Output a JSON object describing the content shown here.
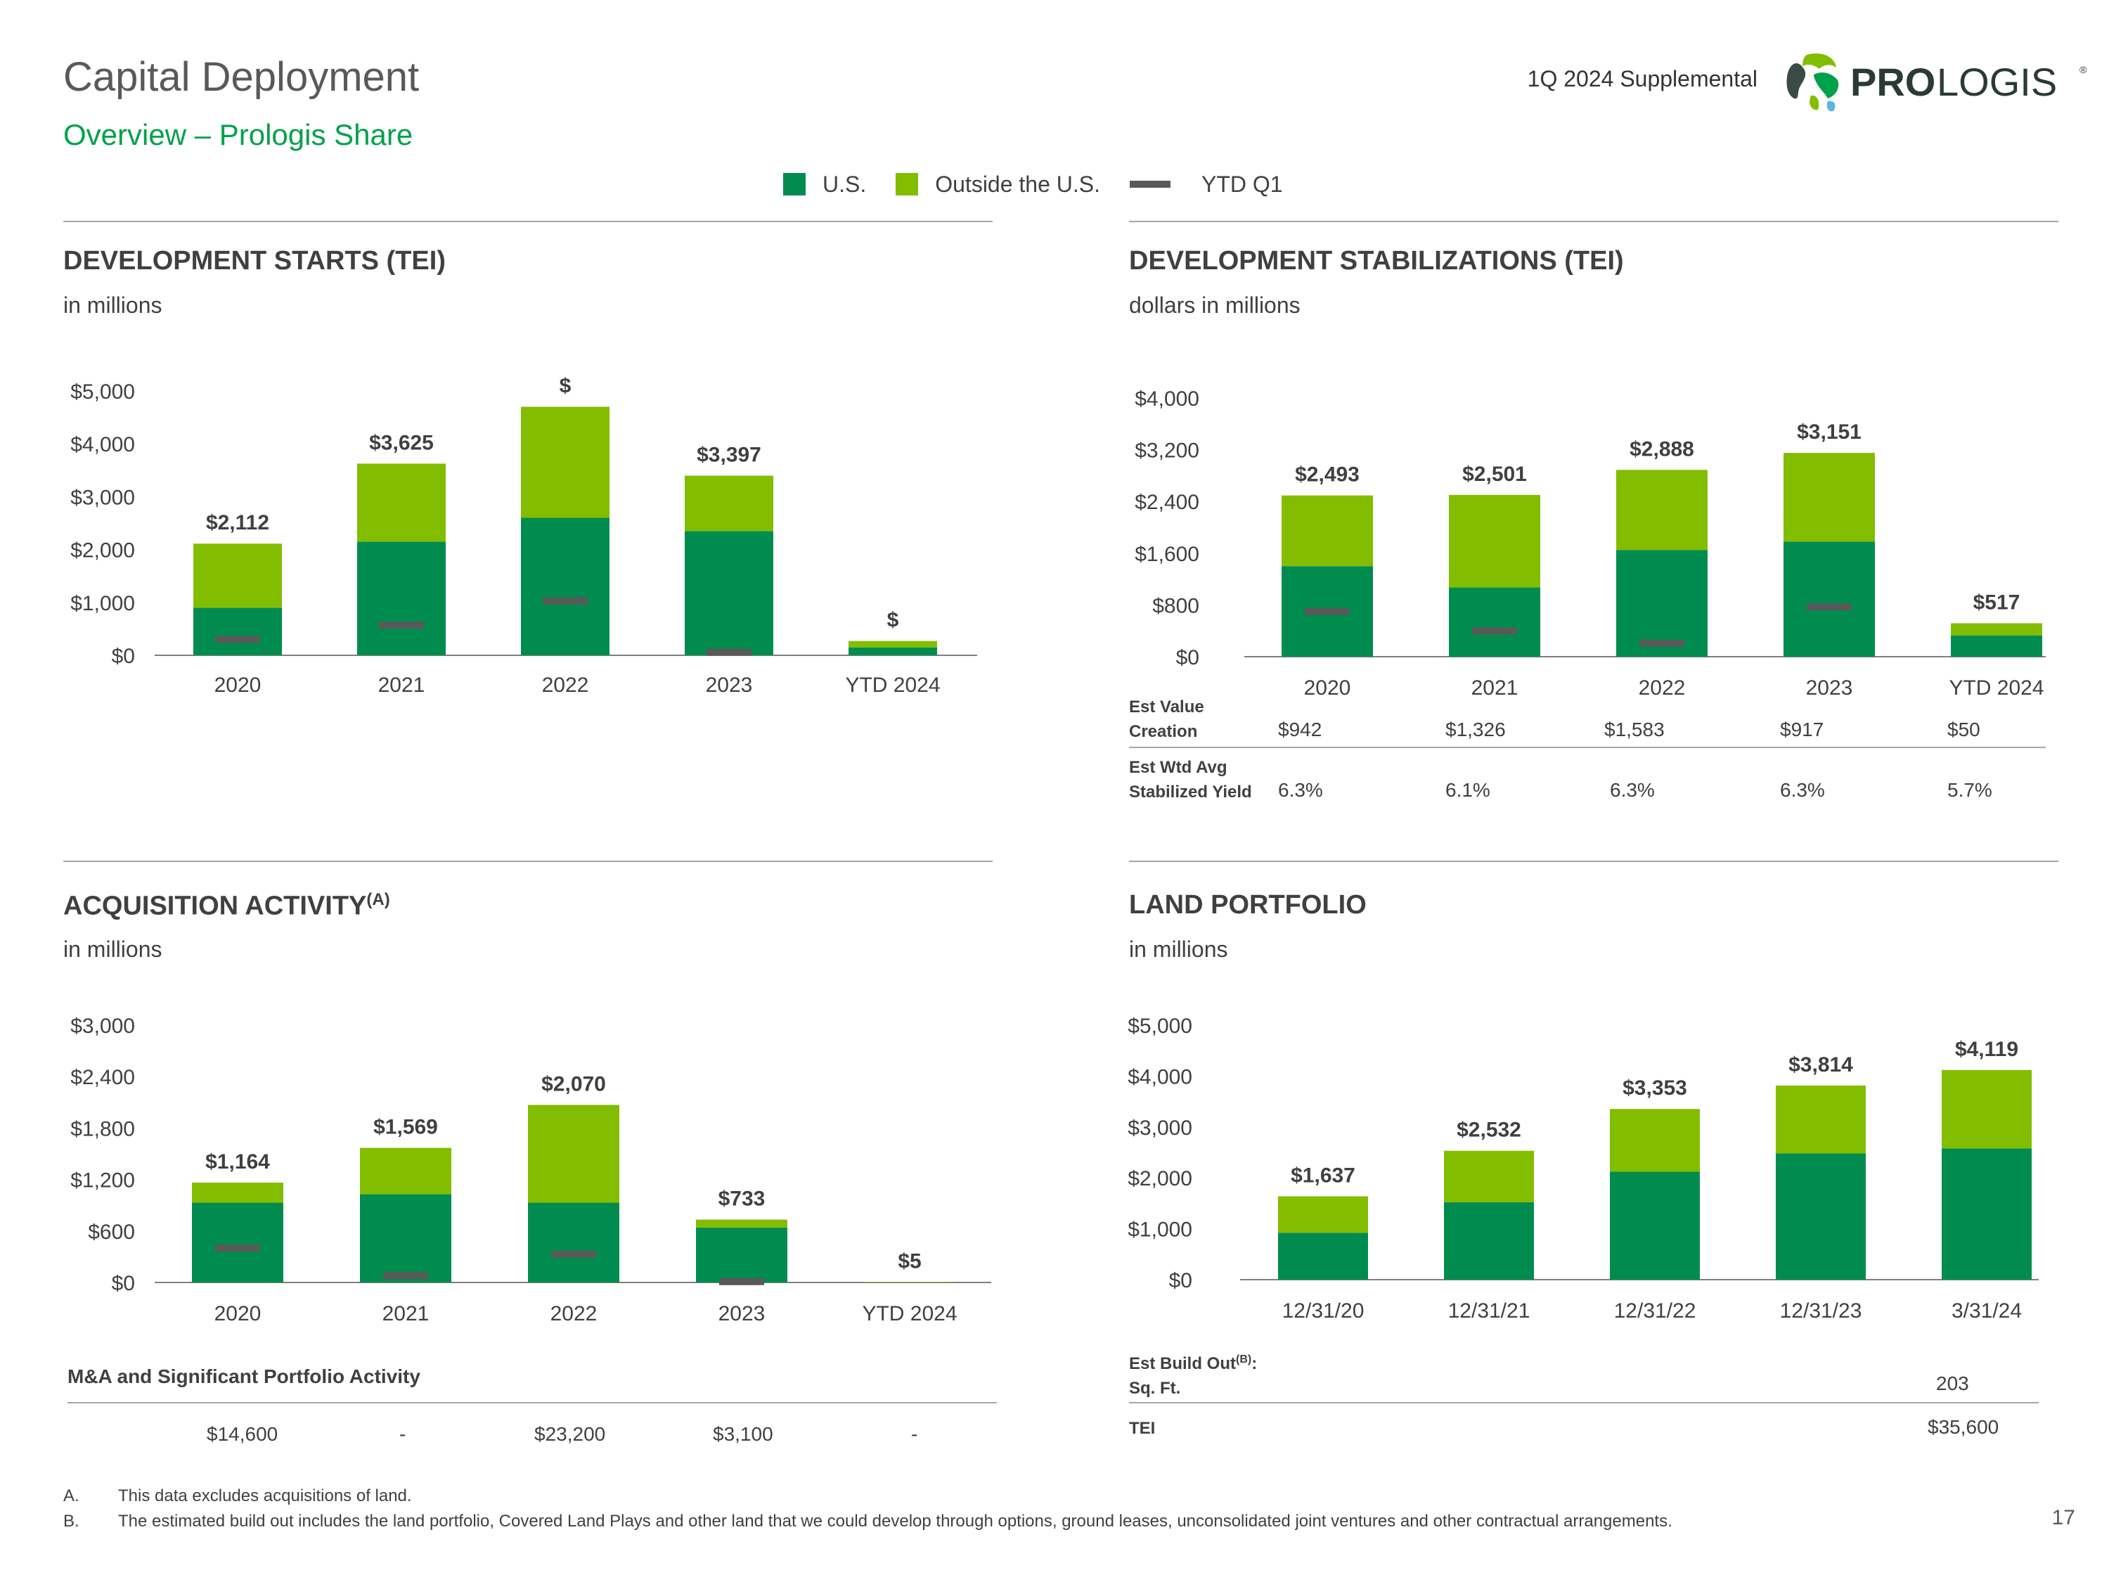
{
  "header": {
    "title": "Capital Deployment",
    "subtitle": "Overview – Prologis Share",
    "supplemental": "1Q 2024 Supplemental",
    "logo_text": "PROLOGIS",
    "logo_text_bold": "PRO",
    "logo_text_light": "LOGIS",
    "registered_mark": "®"
  },
  "legend": {
    "items": [
      {
        "label": "U.S.",
        "color": "#008C4F",
        "kind": "swatch"
      },
      {
        "label": "Outside the U.S.",
        "color": "#83BD00",
        "kind": "swatch"
      },
      {
        "label": "YTD Q1",
        "color": "#595959",
        "kind": "dash"
      }
    ]
  },
  "colors": {
    "us": "#008C4F",
    "outside": "#83BD00",
    "ytd": "#595959",
    "axis": "#7f7f7f",
    "text": "#404040"
  },
  "sections": {
    "starts": {
      "title": "DEVELOPMENT STARTS (TEI)",
      "subtitle": "in millions"
    },
    "stabilizations": {
      "title": "DEVELOPMENT STABILIZATIONS (TEI)",
      "subtitle": "dollars in millions"
    },
    "acquisition": {
      "title": "ACQUISITION ACTIVITY",
      "title_sup": "(A)",
      "subtitle": "in millions"
    },
    "land": {
      "title": "LAND PORTFOLIO",
      "subtitle": "in millions"
    }
  },
  "chart_data": [
    {
      "id": "starts",
      "type": "bar",
      "stacked": true,
      "categories": [
        "2020",
        "2021",
        "2022",
        "2023",
        "YTD 2024"
      ],
      "series": [
        {
          "name": "U.S.",
          "values": [
            900,
            2150,
            2600,
            2350,
            150
          ]
        },
        {
          "name": "Outside the U.S.",
          "values": [
            1212,
            1475,
            2100,
            1047,
            120
          ]
        }
      ],
      "ytd_q1": [
        300,
        570,
        1030,
        60,
        null
      ],
      "data_labels": [
        "$2,112",
        "$3,625",
        "$",
        "$3,397",
        "$"
      ],
      "yticks": [
        "$0",
        "$1,000",
        "$2,000",
        "$3,000",
        "$4,000",
        "$5,000"
      ],
      "ylim": [
        0,
        5000
      ],
      "grid": false
    },
    {
      "id": "stabilizations",
      "type": "bar",
      "stacked": true,
      "categories": [
        "2020",
        "2021",
        "2022",
        "2023",
        "YTD 2024"
      ],
      "series": [
        {
          "name": "U.S.",
          "values": [
            1400,
            1070,
            1650,
            1780,
            330
          ]
        },
        {
          "name": "Outside the U.S.",
          "values": [
            1093,
            1431,
            1238,
            1371,
            187
          ]
        }
      ],
      "ytd_q1": [
        700,
        400,
        210,
        770,
        null
      ],
      "data_labels": [
        "$2,493",
        "$2,501",
        "$2,888",
        "$3,151",
        "$517"
      ],
      "yticks": [
        "$0",
        "$800",
        "$1,600",
        "$2,400",
        "$3,200",
        "$4,000"
      ],
      "ylim": [
        0,
        4000
      ],
      "grid": false,
      "table": {
        "rows": [
          {
            "label_lines": [
              "Est Value",
              "Creation"
            ],
            "values": [
              "$942",
              "$1,326",
              "$1,583",
              "$917",
              "$50"
            ]
          },
          {
            "label_lines": [
              "Est Wtd Avg",
              "Stabilized Yield"
            ],
            "values": [
              "6.3%",
              "6.1%",
              "6.3%",
              "6.3%",
              "5.7%"
            ]
          }
        ]
      }
    },
    {
      "id": "acquisition",
      "type": "bar",
      "stacked": true,
      "categories": [
        "2020",
        "2021",
        "2022",
        "2023",
        "YTD 2024"
      ],
      "series": [
        {
          "name": "U.S.",
          "values": [
            930,
            1030,
            930,
            640,
            0
          ]
        },
        {
          "name": "Outside the U.S.",
          "values": [
            234,
            539,
            1140,
            93,
            5
          ]
        }
      ],
      "ytd_q1": [
        400,
        80,
        330,
        10,
        null
      ],
      "data_labels": [
        "$1,164",
        "$1,569",
        "$2,070",
        "$733",
        "$5"
      ],
      "yticks": [
        "$0",
        "$600",
        "$1,200",
        "$1,800",
        "$2,400",
        "$3,000"
      ],
      "ylim": [
        0,
        3000
      ],
      "grid": false,
      "table": {
        "title": "M&A and Significant Portfolio Activity",
        "values": [
          "$14,600",
          "-",
          "$23,200",
          "$3,100",
          "-"
        ]
      }
    },
    {
      "id": "land",
      "type": "bar",
      "stacked": true,
      "categories": [
        "12/31/20",
        "12/31/21",
        "12/31/22",
        "12/31/23",
        "3/31/24"
      ],
      "series": [
        {
          "name": "U.S.",
          "values": [
            920,
            1520,
            2120,
            2480,
            2580
          ]
        },
        {
          "name": "Outside the U.S.",
          "values": [
            717,
            1012,
            1233,
            1334,
            1539
          ]
        }
      ],
      "data_labels": [
        "$1,637",
        "$2,532",
        "$3,353",
        "$3,814",
        "$4,119"
      ],
      "yticks": [
        "$0",
        "$1,000",
        "$2,000",
        "$3,000",
        "$4,000",
        "$5,000"
      ],
      "ylim": [
        0,
        5000
      ],
      "grid": false,
      "table": {
        "build_out_label": "Est Build Out",
        "build_out_sup": "(B)",
        "build_out_colon": ":",
        "sqft_label": "Sq. Ft.",
        "sqft_value": "203",
        "tei_label": "TEI",
        "tei_value": "$35,600"
      }
    }
  ],
  "footnotes": [
    {
      "letter": "A.",
      "text": "This data excludes acquisitions of land."
    },
    {
      "letter": "B.",
      "text": "The estimated build out includes the land portfolio, Covered Land Plays and other land that we could develop through options, ground leases, unconsolidated joint ventures and other contractual arrangements."
    }
  ],
  "page_number": "17"
}
